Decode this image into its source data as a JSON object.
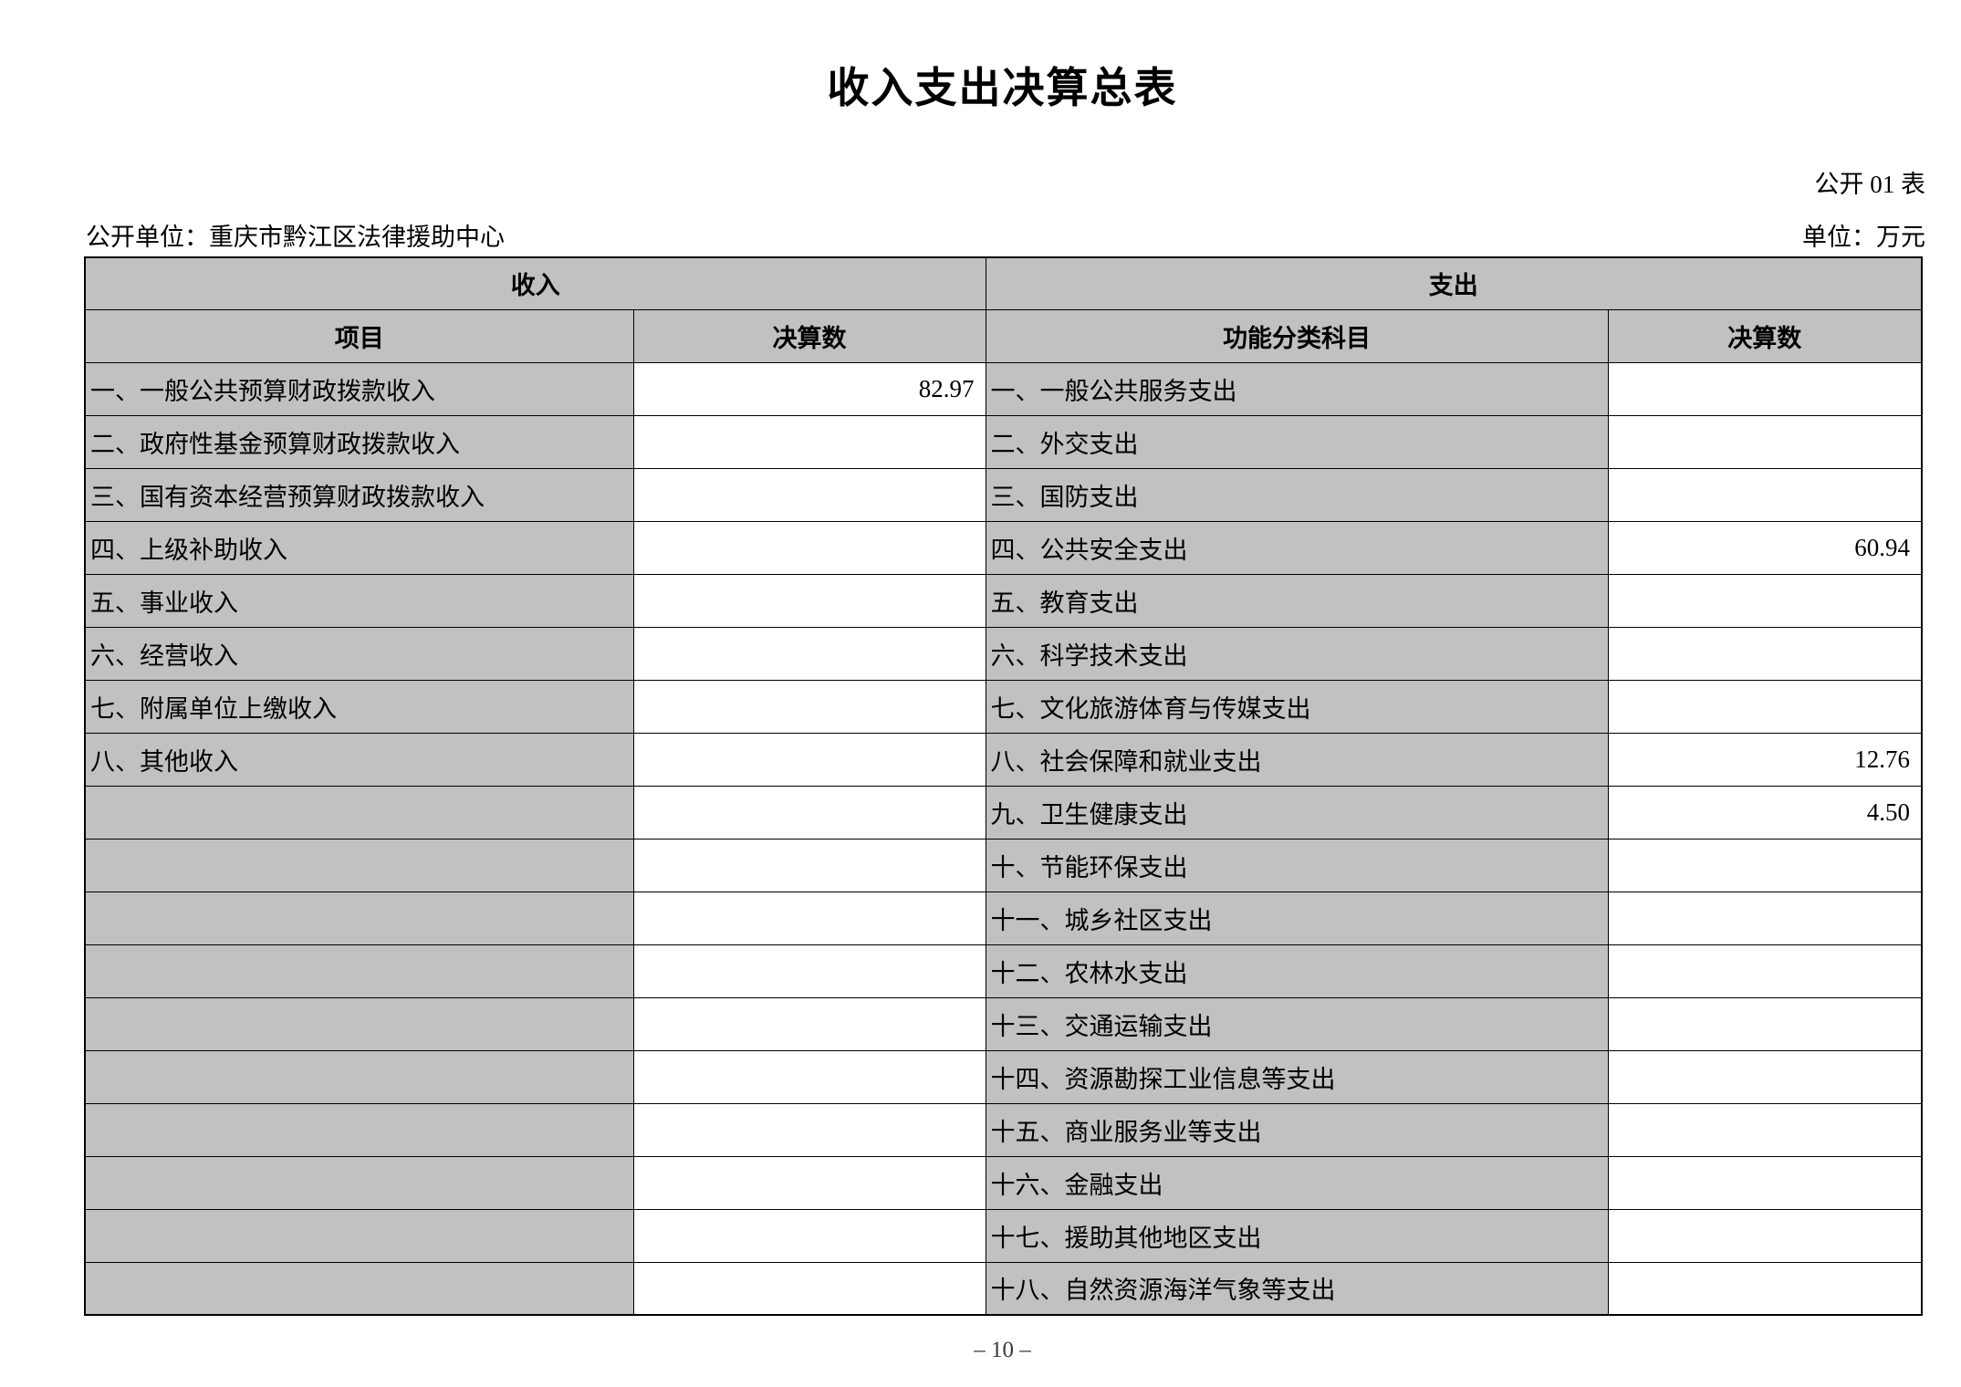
{
  "page": {
    "title": "收入支出决算总表",
    "table_code": "公开 01 表",
    "publishing_unit": "公开单位：重庆市黔江区法律援助中心",
    "currency_unit": "单位：万元",
    "page_number": "– 10 –"
  },
  "colors": {
    "cell_grey": "#c1c1c1",
    "border": "#000000",
    "background": "#ffffff"
  },
  "table": {
    "income": {
      "header": "收入",
      "col_item": "项目",
      "col_amount": "决算数",
      "rows": [
        {
          "item": "一、一般公共预算财政拨款收入",
          "amount": "82.97"
        },
        {
          "item": "二、政府性基金预算财政拨款收入",
          "amount": ""
        },
        {
          "item": "三、国有资本经营预算财政拨款收入",
          "amount": ""
        },
        {
          "item": "四、上级补助收入",
          "amount": ""
        },
        {
          "item": "五、事业收入",
          "amount": ""
        },
        {
          "item": "六、经营收入",
          "amount": ""
        },
        {
          "item": "七、附属单位上缴收入",
          "amount": ""
        },
        {
          "item": "八、其他收入",
          "amount": ""
        },
        {
          "item": "",
          "amount": ""
        },
        {
          "item": "",
          "amount": ""
        },
        {
          "item": "",
          "amount": ""
        },
        {
          "item": "",
          "amount": ""
        },
        {
          "item": "",
          "amount": ""
        },
        {
          "item": "",
          "amount": ""
        },
        {
          "item": "",
          "amount": ""
        },
        {
          "item": "",
          "amount": ""
        },
        {
          "item": "",
          "amount": ""
        },
        {
          "item": "",
          "amount": ""
        }
      ]
    },
    "expenditure": {
      "header": "支出",
      "col_item": "功能分类科目",
      "col_amount": "决算数",
      "rows": [
        {
          "item": "一、一般公共服务支出",
          "amount": ""
        },
        {
          "item": "二、外交支出",
          "amount": ""
        },
        {
          "item": "三、国防支出",
          "amount": ""
        },
        {
          "item": "四、公共安全支出",
          "amount": "60.94"
        },
        {
          "item": "五、教育支出",
          "amount": ""
        },
        {
          "item": "六、科学技术支出",
          "amount": ""
        },
        {
          "item": "七、文化旅游体育与传媒支出",
          "amount": ""
        },
        {
          "item": "八、社会保障和就业支出",
          "amount": "12.76"
        },
        {
          "item": "九、卫生健康支出",
          "amount": "4.50"
        },
        {
          "item": "十、节能环保支出",
          "amount": ""
        },
        {
          "item": "十一、城乡社区支出",
          "amount": ""
        },
        {
          "item": "十二、农林水支出",
          "amount": ""
        },
        {
          "item": "十三、交通运输支出",
          "amount": ""
        },
        {
          "item": "十四、资源勘探工业信息等支出",
          "amount": ""
        },
        {
          "item": "十五、商业服务业等支出",
          "amount": ""
        },
        {
          "item": "十六、金融支出",
          "amount": ""
        },
        {
          "item": "十七、援助其他地区支出",
          "amount": ""
        },
        {
          "item": "十八、自然资源海洋气象等支出",
          "amount": ""
        }
      ]
    }
  }
}
